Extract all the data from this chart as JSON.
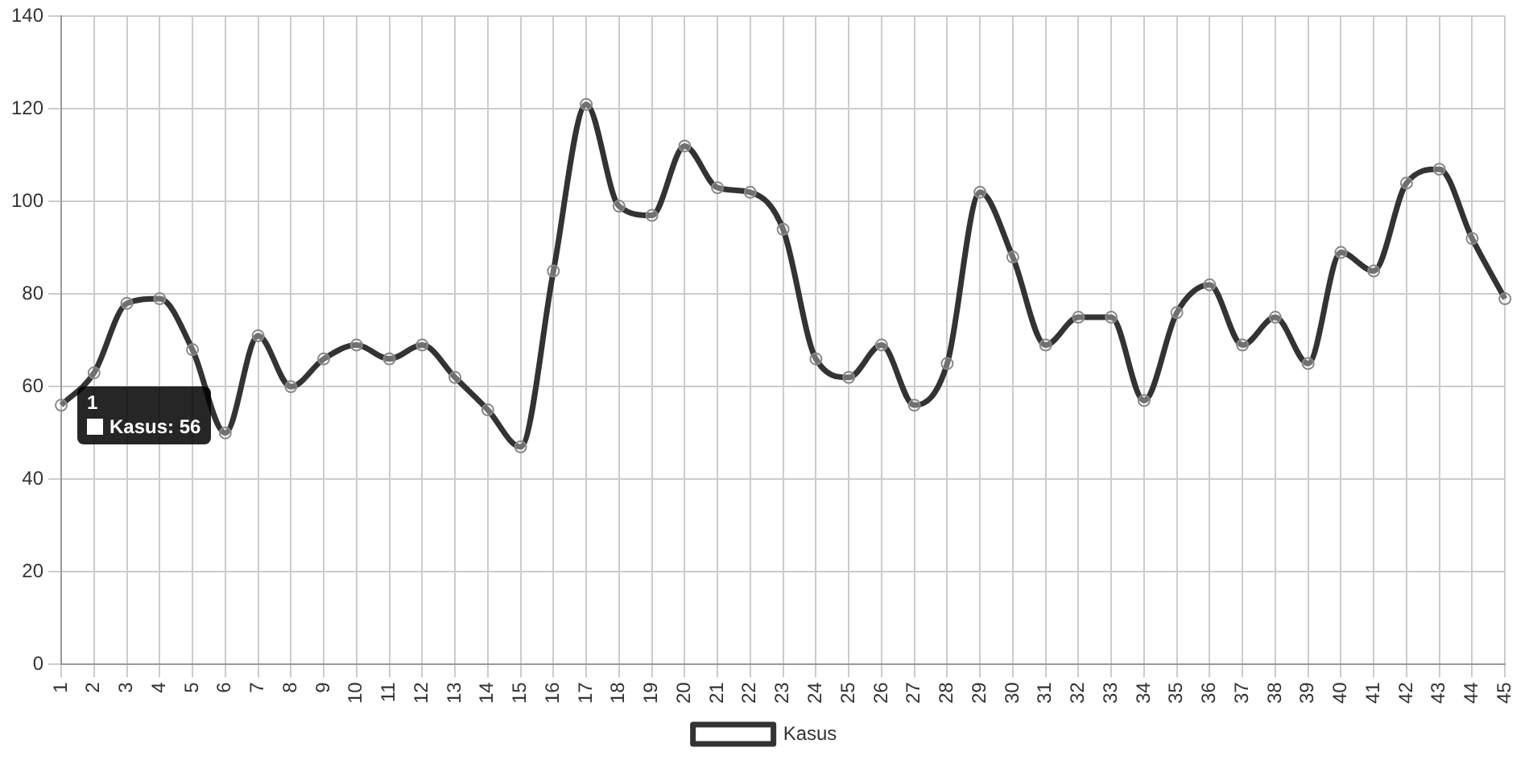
{
  "chart_data": {
    "type": "line",
    "categories": [
      "1",
      "2",
      "3",
      "4",
      "5",
      "6",
      "7",
      "8",
      "9",
      "10",
      "11",
      "12",
      "13",
      "14",
      "15",
      "16",
      "17",
      "18",
      "19",
      "20",
      "21",
      "22",
      "23",
      "24",
      "25",
      "26",
      "27",
      "28",
      "29",
      "30",
      "31",
      "32",
      "33",
      "34",
      "35",
      "36",
      "37",
      "38",
      "39",
      "40",
      "41",
      "42",
      "43",
      "44",
      "45"
    ],
    "series": [
      {
        "name": "Kasus",
        "color": "#333333",
        "values": [
          56,
          63,
          78,
          79,
          68,
          50,
          71,
          60,
          66,
          69,
          66,
          69,
          62,
          55,
          47,
          85,
          121,
          99,
          97,
          112,
          103,
          102,
          94,
          66,
          62,
          69,
          56,
          65,
          102,
          88,
          69,
          75,
          75,
          57,
          76,
          82,
          69,
          75,
          65,
          89,
          85,
          104,
          107,
          92,
          79
        ]
      }
    ],
    "ylim": [
      0,
      140
    ],
    "yticks": [
      0,
      20,
      40,
      60,
      80,
      100,
      120,
      140
    ],
    "grid": true,
    "legend": "bottom",
    "marker": "circle",
    "line_style": "solid",
    "annotations": [
      {
        "text": "Kasus: 56",
        "x": "1",
        "y": 56
      }
    ]
  }
}
